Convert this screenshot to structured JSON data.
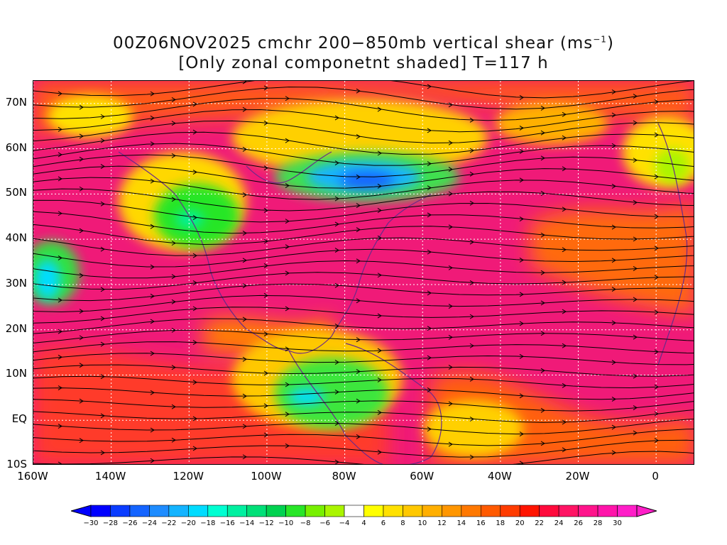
{
  "title": {
    "line1_main": "00Z06NOV2025 cmchr 200−850mb vertical shear (ms",
    "line1_sup": "−1",
    "line1_end": ")",
    "line2": "[Only zonal componetnt shaded] T=117 h"
  },
  "map": {
    "lon_range": [
      -160,
      10
    ],
    "lat_range": [
      -10,
      75
    ],
    "lat_labels": [
      "70N",
      "60N",
      "50N",
      "40N",
      "30N",
      "20N",
      "10N",
      "EQ",
      "10S"
    ],
    "lat_values": [
      70,
      60,
      50,
      40,
      30,
      20,
      10,
      0,
      -10
    ],
    "lon_labels": [
      "160W",
      "140W",
      "120W",
      "100W",
      "80W",
      "60W",
      "40W",
      "20W",
      "0"
    ],
    "lon_values": [
      -160,
      -140,
      -120,
      -100,
      -80,
      -60,
      -40,
      -20,
      0
    ]
  },
  "colorbar": {
    "labels": [
      "-30",
      "-28",
      "-26",
      "-24",
      "-22",
      "-20",
      "-18",
      "-16",
      "-14",
      "-12",
      "-10",
      "-8",
      "-6",
      "-4",
      "4",
      "6",
      "8",
      "10",
      "12",
      "14",
      "16",
      "18",
      "20",
      "22",
      "24",
      "26",
      "28",
      "30"
    ],
    "colors": [
      "#0000ff",
      "#0a3cff",
      "#1464ff",
      "#1e8cff",
      "#14b4ff",
      "#00dcff",
      "#00ffd2",
      "#00f0a0",
      "#00e078",
      "#00d250",
      "#28e628",
      "#78f000",
      "#aaf500",
      "#ffffff",
      "#ffff00",
      "#ffe100",
      "#ffc800",
      "#ffaf00",
      "#ff9600",
      "#ff7800",
      "#ff5a00",
      "#ff3c00",
      "#ff1400",
      "#ff0a3c",
      "#ff1464",
      "#ff148c",
      "#ff14aa",
      "#ff1ec8"
    ]
  }
}
